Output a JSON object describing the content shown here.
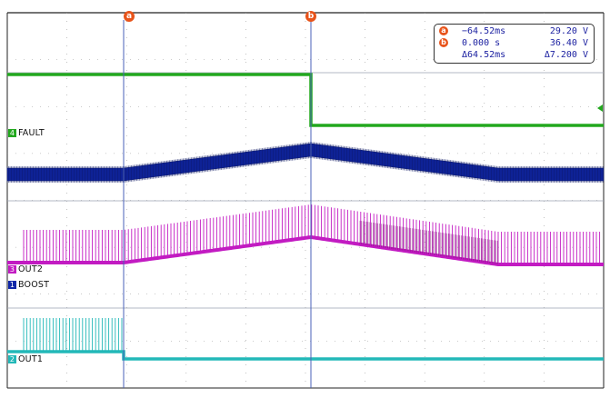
{
  "chart_data": {
    "type": "line",
    "title": "",
    "xlabel": "",
    "ylabel": "",
    "grid": true,
    "time_axis_ms": [
      -135,
      100
    ],
    "channels": [
      {
        "id": "4",
        "name": "FAULT",
        "color": "#22a81e",
        "description_levels": {
          "before_ms": 0,
          "low": 0,
          "high": 1
        }
      },
      {
        "id": "1",
        "name": "BOOST",
        "color": "#1027a8"
      },
      {
        "id": "3",
        "name": "OUT2",
        "color": "#c21bc2"
      },
      {
        "id": "2",
        "name": "OUT1",
        "color": "#22b8b8"
      }
    ],
    "cursors": [
      {
        "id": "a",
        "time": "-64.52ms",
        "value": "29.20 V"
      },
      {
        "id": "b",
        "time": "0.000 s",
        "value": "36.40 V"
      }
    ],
    "delta": {
      "time": "Δ64.52ms",
      "value": "Δ7.200 V"
    }
  },
  "readout": {
    "a_badge": "a",
    "b_badge": "b",
    "a_time": "−64.52ms",
    "a_value": "29.20 V",
    "b_time": "0.000 s",
    "b_value": "36.40 V",
    "delta_time": "Δ64.52ms",
    "delta_value": "Δ7.200 V"
  },
  "labels": {
    "fault": "FAULT",
    "out2": "OUT2",
    "boost": "BOOST",
    "out1": "OUT1",
    "fault_id": "4",
    "out2_id": "3",
    "boost_id": "1",
    "out1_id": "2",
    "cursor_a": "a",
    "cursor_b": "b"
  },
  "colors": {
    "fault": "#22a81e",
    "boost": "#1027a8",
    "out2": "#c21bc2",
    "out1": "#22b8b8",
    "cursor": "#e8541b",
    "grid": "#9a9a9a"
  }
}
